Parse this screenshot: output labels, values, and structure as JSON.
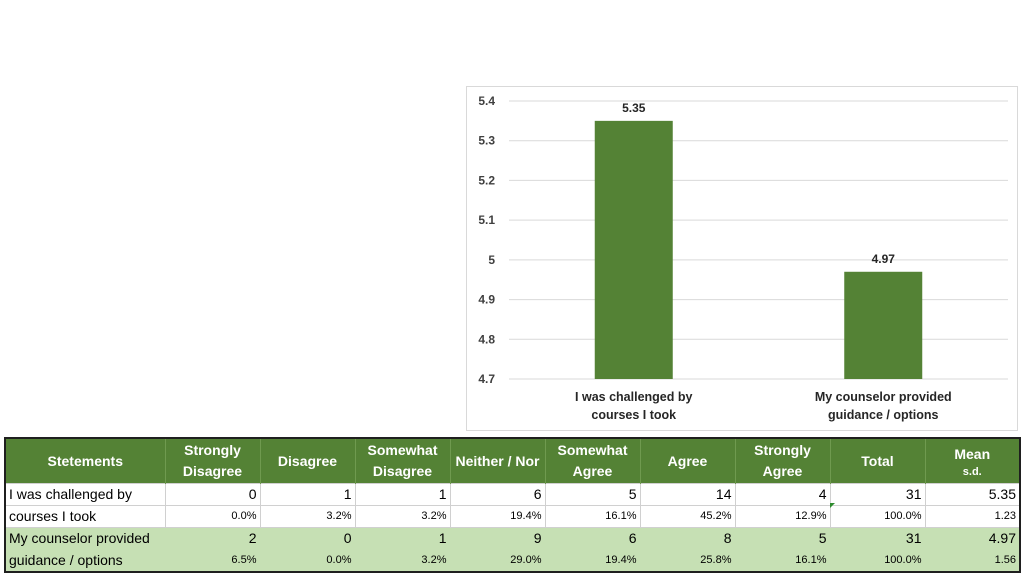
{
  "chart_data": {
    "type": "bar",
    "categories": [
      "I was challenged by courses I took",
      "My counselor provided guidance / options"
    ],
    "category_lines": [
      [
        "I was challenged by",
        "courses I took"
      ],
      [
        "My counselor provided",
        "guidance / options"
      ]
    ],
    "values": [
      5.35,
      4.97
    ],
    "value_labels": [
      "5.35",
      "4.97"
    ],
    "ylim": [
      4.7,
      5.4
    ],
    "yticks": [
      4.7,
      4.8,
      4.9,
      5.0,
      5.1,
      5.2,
      5.3,
      5.4
    ],
    "ytick_labels": [
      "4.7",
      "4.8",
      "4.9",
      "5",
      "5.1",
      "5.2",
      "5.3",
      "5.4"
    ],
    "grid": true,
    "bar_color": "#548235",
    "grid_color": "#d9d9d9"
  },
  "table": {
    "headers": [
      {
        "line1": "Stetements",
        "line2": ""
      },
      {
        "line1": "Strongly",
        "line2": "Disagree"
      },
      {
        "line1": "Disagree",
        "line2": ""
      },
      {
        "line1": "Somewhat",
        "line2": "Disagree"
      },
      {
        "line1": "Neither / Nor",
        "line2": ""
      },
      {
        "line1": "Somewhat",
        "line2": "Agree"
      },
      {
        "line1": "Agree",
        "line2": ""
      },
      {
        "line1": "Strongly",
        "line2": "Agree"
      },
      {
        "line1": "Total",
        "line2": ""
      },
      {
        "line1": "Mean",
        "line2": "s.d."
      }
    ],
    "rows": [
      {
        "statement_line1": "I was challenged by",
        "statement_line2": "courses I took",
        "counts": [
          "0",
          "1",
          "1",
          "6",
          "5",
          "14",
          "4",
          "31",
          "5.35"
        ],
        "percents": [
          "0.0%",
          "3.2%",
          "3.2%",
          "19.4%",
          "16.1%",
          "45.2%",
          "12.9%",
          "100.0%",
          "1.23"
        ]
      },
      {
        "statement_line1": "My counselor provided",
        "statement_line2": "guidance / options",
        "counts": [
          "2",
          "0",
          "1",
          "9",
          "6",
          "8",
          "5",
          "31",
          "4.97"
        ],
        "percents": [
          "6.5%",
          "0.0%",
          "3.2%",
          "29.0%",
          "19.4%",
          "25.8%",
          "16.1%",
          "100.0%",
          "1.56"
        ]
      }
    ],
    "header_color": "#548235",
    "alt_row_color": "#c6e0b4"
  }
}
